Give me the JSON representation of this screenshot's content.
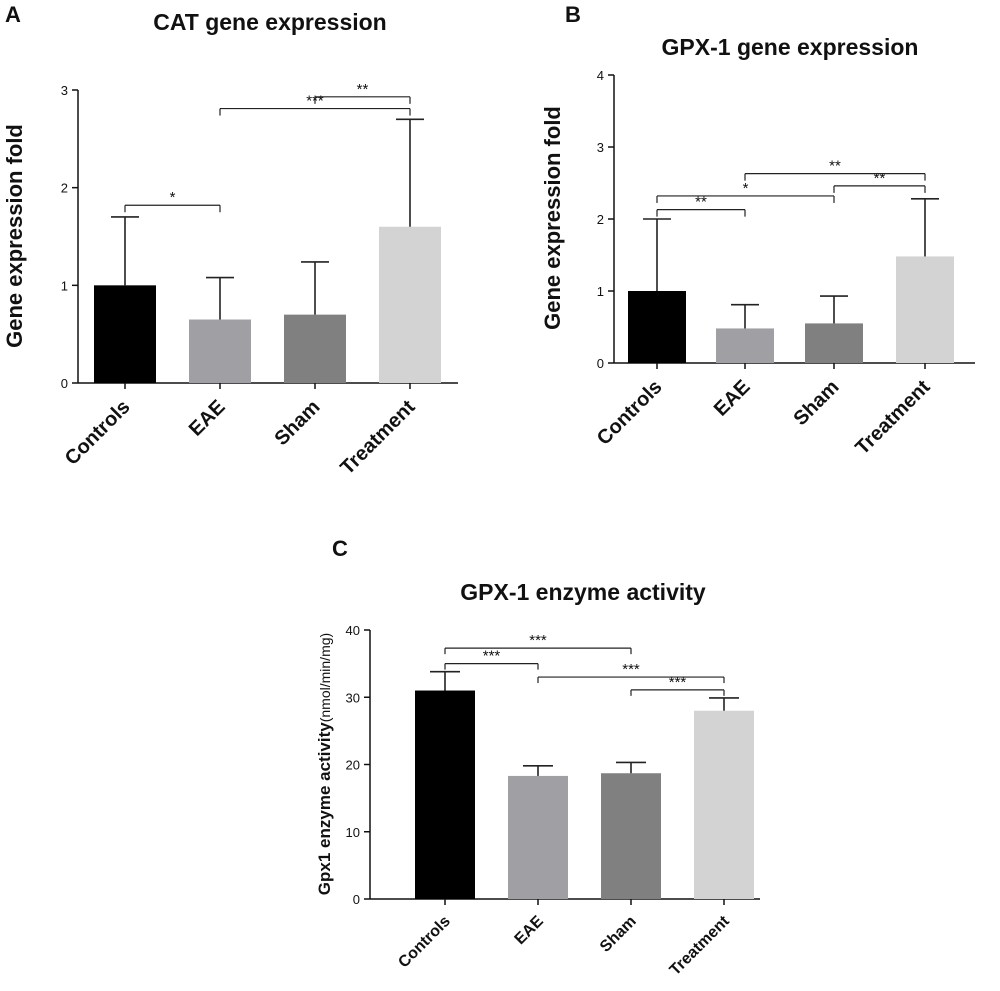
{
  "chart_data": [
    {
      "panel": "A",
      "type": "bar",
      "title": "CAT gene expression",
      "ylabel": "Gene expression fold",
      "xlabel": "",
      "categories": [
        "Controls",
        "EAE",
        "Sham",
        "Treatment"
      ],
      "values": [
        1.0,
        0.65,
        0.7,
        1.6
      ],
      "error": [
        0.7,
        0.43,
        0.54,
        1.1
      ],
      "colors": [
        "#000000",
        "#a0a0a4",
        "#808080",
        "#d3d3d3"
      ],
      "ylim": [
        0,
        3
      ],
      "yticks": [
        "0",
        "1",
        "2",
        "3"
      ],
      "significance": [
        {
          "from": 0,
          "to": 1,
          "label": "*",
          "y": 1.82
        },
        {
          "from": 1,
          "to": 3,
          "label": "***",
          "y": 2.81
        },
        {
          "from": 2,
          "to": 3,
          "label": "**",
          "y": 2.93
        }
      ]
    },
    {
      "panel": "B",
      "type": "bar",
      "title": "GPX-1 gene expression",
      "ylabel": "Gene expression fold",
      "xlabel": "",
      "categories": [
        "Controls",
        "EAE",
        "Sham",
        "Treatment"
      ],
      "values": [
        1.0,
        0.48,
        0.55,
        1.48
      ],
      "error": [
        1.0,
        0.33,
        0.38,
        0.8
      ],
      "colors": [
        "#000000",
        "#a0a0a4",
        "#808080",
        "#d3d3d3"
      ],
      "ylim": [
        0,
        4
      ],
      "yticks": [
        "0",
        "1",
        "2",
        "3",
        "4"
      ],
      "significance": [
        {
          "from": 0,
          "to": 1,
          "label": "**",
          "y": 2.13
        },
        {
          "from": 0,
          "to": 2,
          "label": "*",
          "y": 2.32
        },
        {
          "from": 2,
          "to": 3,
          "label": "**",
          "y": 2.46
        },
        {
          "from": 1,
          "to": 3,
          "label": "**",
          "y": 2.63
        }
      ]
    },
    {
      "panel": "C",
      "type": "bar",
      "title": "GPX-1 enzyme activity",
      "ylabel": "Gpx1 enzyme activity",
      "ylabel_unit": "(nmol/min/mg)",
      "xlabel": "",
      "categories": [
        "Controls",
        "EAE",
        "Sham",
        "Treatment"
      ],
      "values": [
        31.0,
        18.3,
        18.7,
        28.0
      ],
      "error": [
        2.8,
        1.5,
        1.6,
        1.9
      ],
      "colors": [
        "#000000",
        "#a0a0a4",
        "#808080",
        "#d3d3d3"
      ],
      "ylim": [
        0,
        40
      ],
      "yticks": [
        "0",
        "10",
        "20",
        "30",
        "40"
      ],
      "significance": [
        {
          "from": 0,
          "to": 2,
          "label": "***",
          "y": 37.3
        },
        {
          "from": 0,
          "to": 1,
          "label": "***",
          "y": 35.0
        },
        {
          "from": 1,
          "to": 3,
          "label": "***",
          "y": 33.0
        },
        {
          "from": 2,
          "to": 3,
          "label": "***",
          "y": 31.1
        }
      ]
    }
  ]
}
